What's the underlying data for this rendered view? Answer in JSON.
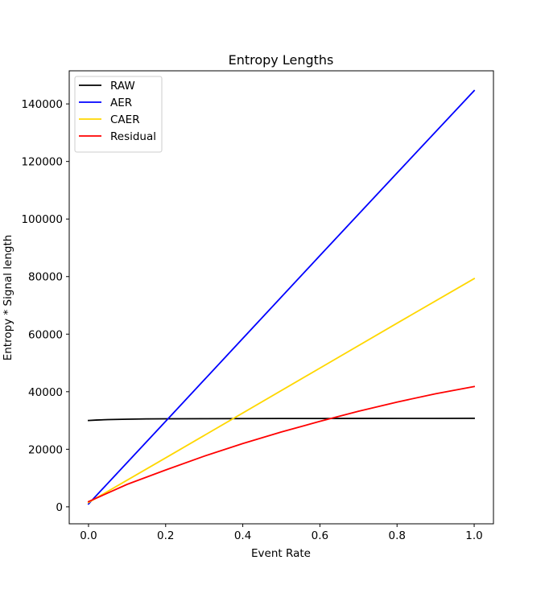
{
  "chart_data": {
    "type": "line",
    "title": "Entropy Lengths",
    "xlabel": "Event Rate",
    "ylabel": "Entropy * Signal length",
    "xlim": [
      -0.05,
      1.05
    ],
    "ylim": [
      -5900,
      151500
    ],
    "xticks": [
      0.0,
      0.2,
      0.4,
      0.6,
      0.8,
      1.0
    ],
    "xtick_labels": [
      "0.0",
      "0.2",
      "0.4",
      "0.6",
      "0.8",
      "1.0"
    ],
    "yticks": [
      0,
      20000,
      40000,
      60000,
      80000,
      100000,
      120000,
      140000
    ],
    "ytick_labels": [
      "0",
      "20000",
      "40000",
      "60000",
      "80000",
      "100000",
      "120000",
      "140000"
    ],
    "grid": false,
    "legend_position": "upper-left",
    "series": [
      {
        "name": "RAW",
        "color": "#000000",
        "x": [
          0.0,
          0.02,
          0.05,
          0.1,
          0.15,
          0.2,
          0.3,
          0.4,
          0.5,
          0.6,
          0.7,
          0.8,
          0.9,
          1.0
        ],
        "y": [
          30000,
          30150,
          30300,
          30450,
          30550,
          30580,
          30620,
          30650,
          30680,
          30700,
          30710,
          30720,
          30730,
          30750
        ]
      },
      {
        "name": "AER",
        "color": "#0000ff",
        "x": [
          0.0,
          0.2,
          0.4,
          0.6,
          0.8,
          1.0
        ],
        "y": [
          1000,
          29700,
          58500,
          87300,
          116000,
          144600
        ]
      },
      {
        "name": "CAER",
        "color": "#ffd700",
        "x": [
          0.0,
          0.2,
          0.4,
          0.6,
          0.8,
          1.0
        ],
        "y": [
          1500,
          17000,
          32600,
          48200,
          63800,
          79300
        ]
      },
      {
        "name": "Residual",
        "color": "#ff0000",
        "x": [
          0.0,
          0.1,
          0.2,
          0.3,
          0.4,
          0.5,
          0.6,
          0.7,
          0.8,
          0.9,
          1.0
        ],
        "y": [
          1800,
          7800,
          12800,
          17600,
          22000,
          26000,
          29700,
          33200,
          36400,
          39300,
          41800
        ]
      }
    ]
  }
}
